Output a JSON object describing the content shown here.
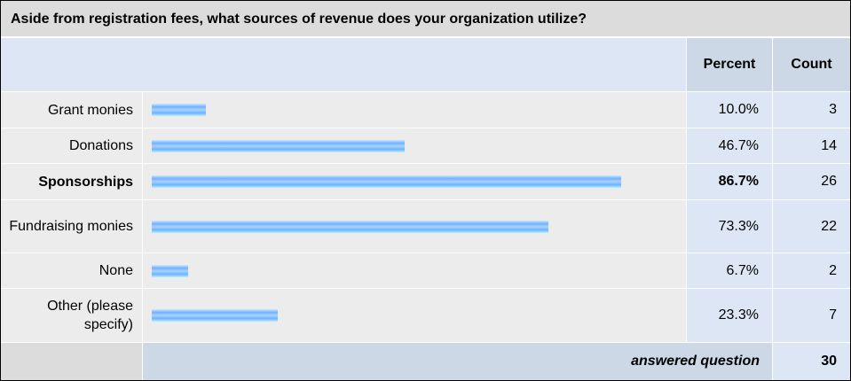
{
  "title": "Aside from registration fees, what sources of revenue does your organization utilize?",
  "headers": {
    "percent": "Percent",
    "count": "Count"
  },
  "rows": [
    {
      "label": "Grant monies",
      "percent": "10.0%",
      "count": "3",
      "bold": false
    },
    {
      "label": "Donations",
      "percent": "46.7%",
      "count": "14",
      "bold": false
    },
    {
      "label": "Sponsorships",
      "percent": "86.7%",
      "count": "26",
      "bold": true
    },
    {
      "label": "Fundraising monies",
      "percent": "73.3%",
      "count": "22",
      "bold": false
    },
    {
      "label": "None",
      "percent": "6.7%",
      "count": "2",
      "bold": false
    },
    {
      "label": "Other (please specify)",
      "percent": "23.3%",
      "count": "7",
      "bold": false
    }
  ],
  "footer": {
    "label": "answered question",
    "value": "30"
  },
  "chart_data": {
    "type": "bar",
    "orientation": "horizontal",
    "categories": [
      "Grant monies",
      "Donations",
      "Sponsorships",
      "Fundraising monies",
      "None",
      "Other (please specify)"
    ],
    "values": [
      10.0,
      46.7,
      86.7,
      73.3,
      6.7,
      23.3
    ],
    "counts": [
      3,
      14,
      26,
      22,
      2,
      7
    ],
    "xlim": [
      0,
      100
    ]
  }
}
